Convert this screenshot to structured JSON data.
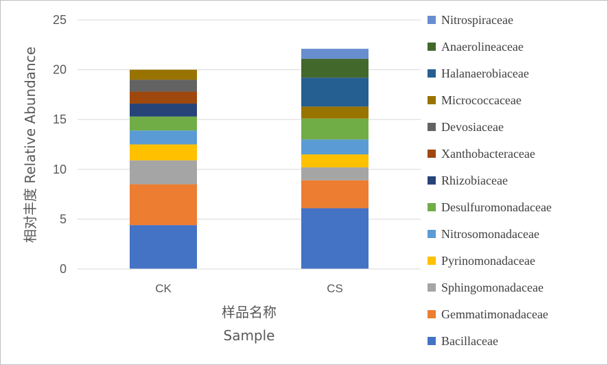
{
  "chart_data": {
    "type": "bar",
    "stacked": true,
    "categories": [
      "CK",
      "CS"
    ],
    "xlabel_line1": "样品名称",
    "xlabel_line2": "Sample",
    "ylabel": "相对丰度 Relative Abundance",
    "ylim": [
      0,
      25
    ],
    "yticks": [
      "0",
      "5",
      "10",
      "15",
      "20",
      "25"
    ],
    "legend_position": "right",
    "series": [
      {
        "name": "Bacillaceae",
        "color": "#4472C4",
        "values": [
          4.4,
          6.1
        ]
      },
      {
        "name": "Gemmatimonadaceae",
        "color": "#ED7D31",
        "values": [
          4.1,
          2.8
        ]
      },
      {
        "name": "Sphingomonadaceae",
        "color": "#A5A5A5",
        "values": [
          2.4,
          1.3
        ]
      },
      {
        "name": "Pyrinomonadaceae",
        "color": "#FFC000",
        "values": [
          1.6,
          1.3
        ]
      },
      {
        "name": "Nitrosomonadaceae",
        "color": "#5B9BD5",
        "values": [
          1.4,
          1.5
        ]
      },
      {
        "name": "Desulfuromonadaceae",
        "color": "#70AD47",
        "values": [
          1.4,
          2.1
        ]
      },
      {
        "name": "Rhizobiaceae",
        "color": "#264478",
        "values": [
          1.3,
          0.0
        ]
      },
      {
        "name": "Xanthobacteraceae",
        "color": "#9E480E",
        "values": [
          1.2,
          0.0
        ]
      },
      {
        "name": "Devosiaceae",
        "color": "#636363",
        "values": [
          1.2,
          0.0
        ]
      },
      {
        "name": "Micrococcaceae",
        "color": "#997300",
        "values": [
          1.0,
          1.2
        ]
      },
      {
        "name": "Halanaerobiaceae",
        "color": "#255E91",
        "values": [
          0.0,
          2.9
        ]
      },
      {
        "name": "Anaerolineaceae",
        "color": "#43682B",
        "values": [
          0.0,
          1.9
        ]
      },
      {
        "name": "Nitrospiraceae",
        "color": "#698ED0",
        "values": [
          0.0,
          1.0
        ]
      }
    ]
  }
}
